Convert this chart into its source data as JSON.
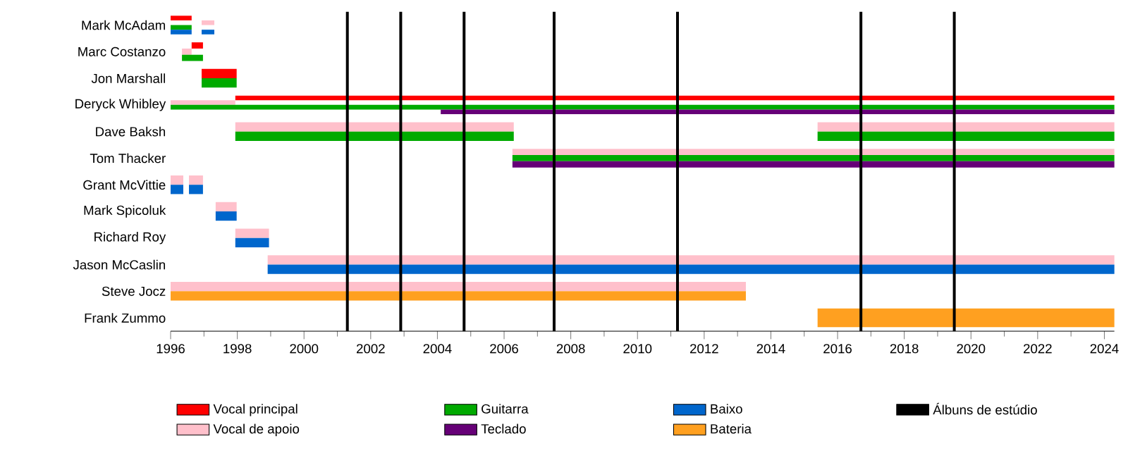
{
  "chart_data": {
    "type": "bar",
    "orientation": "horizontal",
    "categories": [
      "Mark McAdam",
      "Marc Costanzo",
      "Jon Marshall",
      "Deryck Whibley",
      "Dave Baksh",
      "Tom Thacker",
      "Grant McVittie",
      "Mark Spicoluk",
      "Richard Roy",
      "Jason McCaslin",
      "Steve Jocz",
      "Frank Zummo"
    ],
    "series": [
      {
        "name": "Vocal principal",
        "color": "#ff0000",
        "base": [
          1996,
          1996.63,
          1996.93,
          1997.94,
          null,
          null,
          null,
          null,
          null,
          null,
          null,
          null
        ],
        "values": [
          0.63,
          0.34,
          1.05,
          26.36,
          null,
          null,
          null,
          null,
          null,
          null,
          null,
          null
        ]
      },
      {
        "name": "Vocal de apoio",
        "color": "#ffc0cb",
        "base": [
          1996.93,
          1996.34,
          null,
          1996,
          1997.94,
          2006.25,
          1996,
          1997.35,
          1997.94,
          1998.91,
          1996,
          null
        ],
        "values": [
          0.38,
          0.29,
          null,
          1.94,
          8.35,
          18.05,
          0.38,
          0.63,
          1.01,
          25.39,
          17.25,
          null
        ]
      },
      {
        "name": "Guitarra",
        "color": "#00aa00",
        "base": [
          1996,
          1996.34,
          1996.93,
          1996,
          1997.94,
          2006.25,
          null,
          null,
          null,
          null,
          null,
          null
        ],
        "values": [
          0.63,
          0.63,
          1.05,
          28.3,
          8.35,
          18.05,
          null,
          null,
          null,
          null,
          null,
          null
        ]
      },
      {
        "name": "Teclado",
        "color": "#660077",
        "base": [
          null,
          null,
          null,
          2004.1,
          null,
          2006.25,
          null,
          null,
          null,
          null,
          null,
          null
        ],
        "values": [
          null,
          null,
          null,
          20.2,
          null,
          18.05,
          null,
          null,
          null,
          null,
          null,
          null
        ]
      },
      {
        "name": "Baixo",
        "color": "#0066cc",
        "base": [
          1996,
          null,
          null,
          null,
          null,
          null,
          1996,
          1997.35,
          1997.94,
          1998.91,
          null,
          null
        ],
        "values": [
          0.63,
          null,
          null,
          null,
          null,
          null,
          0.38,
          0.63,
          1.01,
          25.39,
          null,
          null
        ]
      },
      {
        "name": "Bateria",
        "color": "#ffa020",
        "base": [
          null,
          null,
          null,
          null,
          null,
          null,
          null,
          null,
          null,
          null,
          1996,
          2015.4
        ],
        "values": [
          null,
          null,
          null,
          null,
          null,
          null,
          null,
          null,
          null,
          null,
          17.25,
          8.9
        ]
      },
      {
        "color": "#ffc0cb",
        "base": [
          null,
          null,
          null,
          null,
          2015.4,
          null,
          1996.55,
          null,
          null,
          null,
          null,
          null
        ],
        "values": [
          null,
          null,
          null,
          null,
          8.9,
          null,
          0.42,
          null,
          null,
          null,
          null,
          null
        ]
      },
      {
        "color": "#00aa00",
        "base": [
          null,
          null,
          null,
          null,
          2015.4,
          null,
          null,
          null,
          null,
          null,
          null,
          null
        ],
        "values": [
          null,
          null,
          null,
          null,
          8.9,
          null,
          null,
          null,
          null,
          null,
          null,
          null
        ]
      },
      {
        "color": "#0066cc",
        "base": [
          1996.93,
          null,
          null,
          null,
          null,
          null,
          1996.55,
          null,
          null,
          null,
          null,
          null
        ],
        "values": [
          0.38,
          null,
          null,
          null,
          null,
          null,
          0.42,
          null,
          null,
          null,
          null,
          null
        ]
      }
    ],
    "ref_lines": [
      {
        "axis": "x",
        "value": 2001.3,
        "label": "Álbuns de estúdio",
        "color": "#000000"
      },
      {
        "axis": "x",
        "value": 2002.9,
        "color": "#000000"
      },
      {
        "axis": "x",
        "value": 2004.8,
        "color": "#000000"
      },
      {
        "axis": "x",
        "value": 2007.5,
        "color": "#000000"
      },
      {
        "axis": "x",
        "value": 2011.2,
        "color": "#000000"
      },
      {
        "axis": "x",
        "value": 2016.7,
        "color": "#000000"
      },
      {
        "axis": "x",
        "value": 2019.5,
        "color": "#000000"
      }
    ],
    "xlim": [
      1996,
      2024.3
    ],
    "xticks": [
      1996,
      1998,
      2000,
      2002,
      2004,
      2006,
      2008,
      2010,
      2012,
      2014,
      2016,
      2018,
      2020,
      2022,
      2024
    ],
    "legend": "bottom"
  }
}
